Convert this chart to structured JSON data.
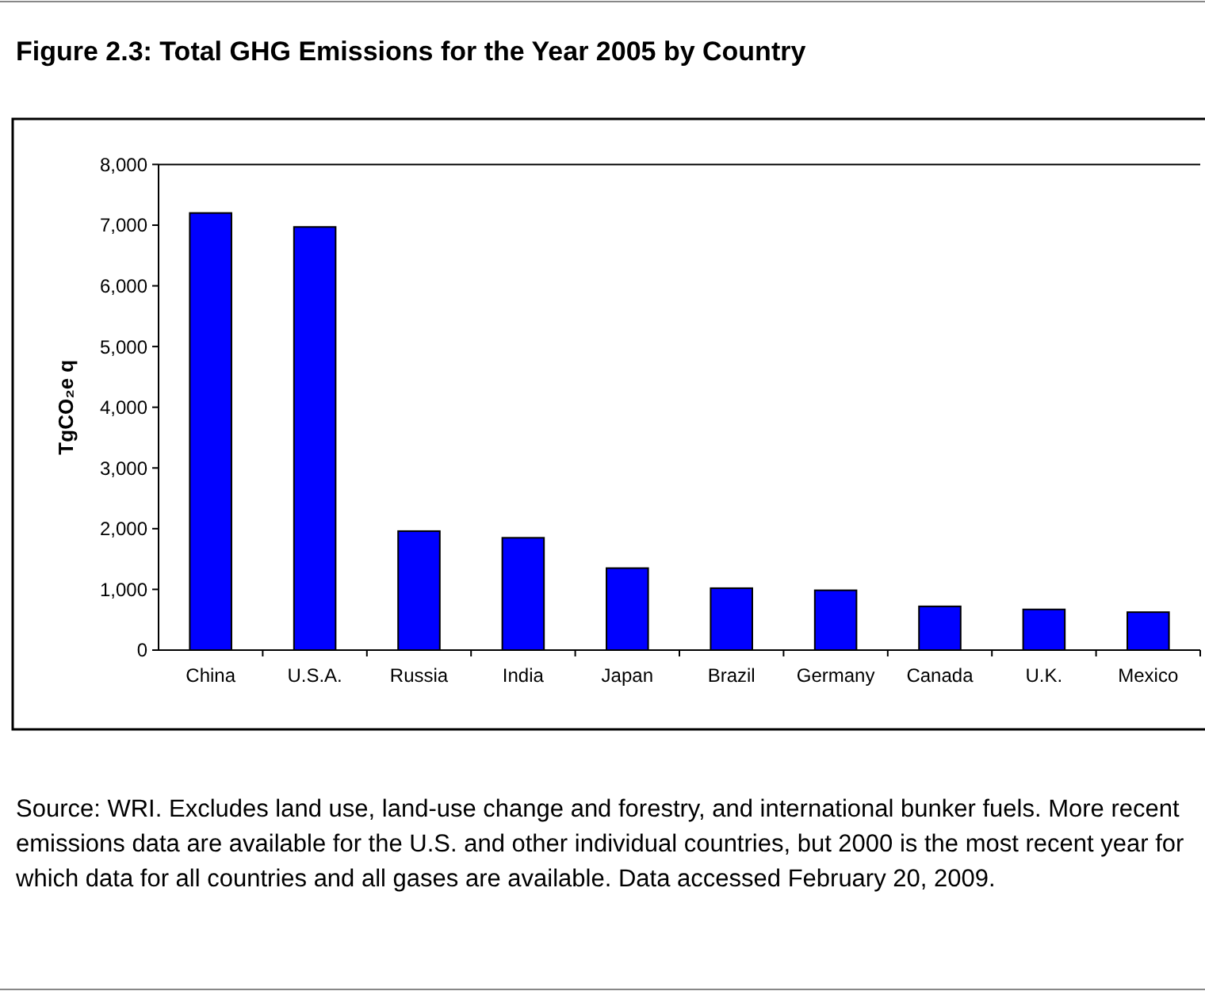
{
  "chart_data": {
    "type": "bar",
    "title": "Figure 2.3: Total GHG Emissions for the Year 2005 by Country",
    "ylabel": "TgCO₂e q",
    "categories": [
      "China",
      "U.S.A.",
      "Russia",
      "India",
      "Japan",
      "Brazil",
      "Germany",
      "Canada",
      "U.K.",
      "Mexico"
    ],
    "values": [
      7200,
      6970,
      1960,
      1850,
      1350,
      1020,
      985,
      720,
      670,
      625
    ],
    "color": "#0000ff",
    "ylim": [
      0,
      8000
    ],
    "yticks": [
      {
        "value": 0,
        "label": "0"
      },
      {
        "value": 1000,
        "label": "1,000"
      },
      {
        "value": 2000,
        "label": "2,000"
      },
      {
        "value": 3000,
        "label": "3,000"
      },
      {
        "value": 4000,
        "label": "4,000"
      },
      {
        "value": 5000,
        "label": "5,000"
      },
      {
        "value": 6000,
        "label": "6,000"
      },
      {
        "value": 7000,
        "label": "7,000"
      },
      {
        "value": 8000,
        "label": "8,000"
      }
    ],
    "grid": false,
    "annotations": [
      "Source: WRI.",
      "Excludes land use, land-use change and forestry, and international bunker fuels.",
      "More recent emissions data are available for the U.S. and other individual countries, but 2000 is the most recent year for which data for all countries and all gases are available.",
      "Data accessed February 20, 2009."
    ]
  }
}
